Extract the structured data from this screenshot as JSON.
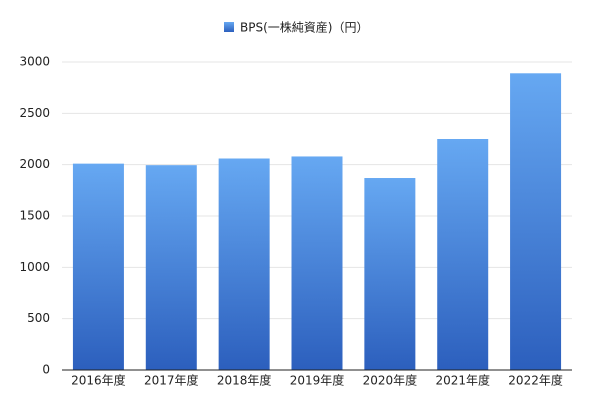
{
  "chart_data": {
    "type": "bar",
    "legend": "BPS(一株純資産)（円）",
    "legend_position": "top",
    "categories": [
      "2016年度",
      "2017年度",
      "2018年度",
      "2019年度",
      "2020年度",
      "2021年度",
      "2022年度"
    ],
    "values": [
      2010,
      1995,
      2060,
      2080,
      1870,
      2250,
      2890
    ],
    "color": "#66a8f2",
    "ylim": [
      0,
      3000
    ],
    "yticks": [
      0,
      500,
      1000,
      1500,
      2000,
      2500,
      3000
    ],
    "grid": true
  }
}
